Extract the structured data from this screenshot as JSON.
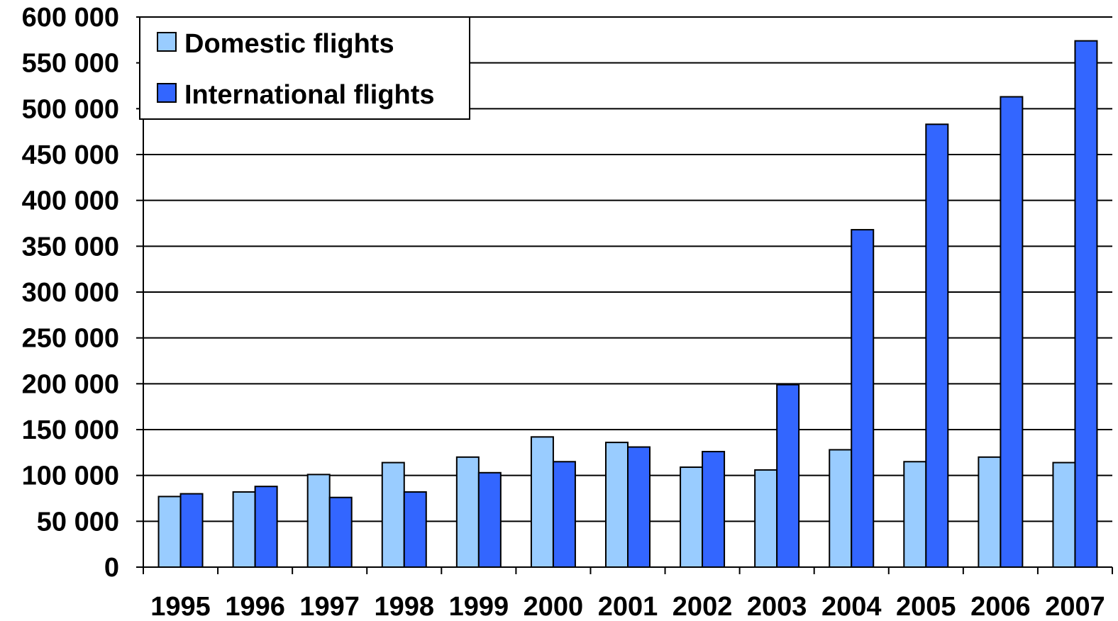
{
  "chart_data": {
    "type": "bar",
    "title": "",
    "xlabel": "",
    "ylabel": "",
    "categories": [
      "1995",
      "1996",
      "1997",
      "1998",
      "1999",
      "2000",
      "2001",
      "2002",
      "2003",
      "2004",
      "2005",
      "2006",
      "2007"
    ],
    "series": [
      {
        "name": "Domestic flights",
        "color": "#99ccff",
        "values": [
          77000,
          82000,
          101000,
          114000,
          120000,
          142000,
          136000,
          109000,
          106000,
          128000,
          115000,
          120000,
          114000
        ]
      },
      {
        "name": "International flights",
        "color": "#3366ff",
        "values": [
          80000,
          88000,
          76000,
          82000,
          103000,
          115000,
          131000,
          126000,
          199000,
          368000,
          483000,
          513000,
          574000
        ]
      }
    ],
    "ylim": [
      0,
      600000
    ],
    "yticks": [
      0,
      50000,
      100000,
      150000,
      200000,
      250000,
      300000,
      350000,
      400000,
      450000,
      500000,
      550000,
      600000
    ],
    "ytick_labels": [
      "0",
      "50 000",
      "100 000",
      "150 000",
      "200 000",
      "250 000",
      "300 000",
      "350 000",
      "400 000",
      "450 000",
      "500 000",
      "550 000",
      "600 000"
    ],
    "grid": true,
    "legend_position": "top-left"
  }
}
